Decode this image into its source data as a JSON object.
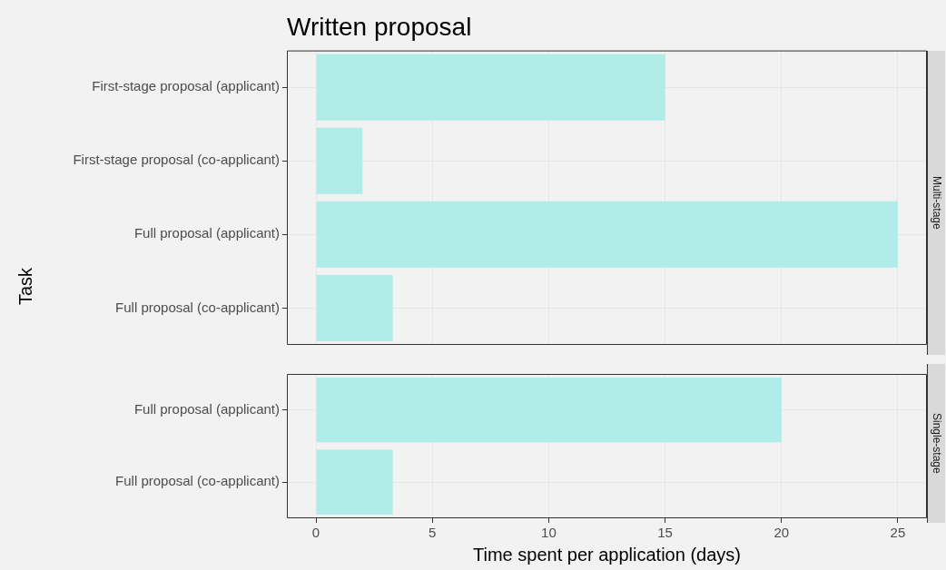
{
  "chart_data": [
    {
      "type": "bar",
      "title": "Written proposal",
      "ylabel": "Task",
      "orientation": "horizontal",
      "categories": [
        "First-stage proposal (applicant)",
        "First-stage proposal (co-applicant)",
        "Full proposal (applicant)",
        "Full proposal (co-applicant)"
      ],
      "values": [
        15,
        2,
        25,
        3.3
      ],
      "color": "#b0ede8",
      "xlim": [
        -1.25,
        26.25
      ],
      "xticks": [
        0,
        5,
        10,
        15,
        20,
        25
      ],
      "grid": true,
      "tick_labels": "y",
      "annotations": [
        "Multi-stage"
      ]
    },
    {
      "type": "bar",
      "xlabel": "Time spent per application (days)",
      "orientation": "horizontal",
      "categories": [
        "Full proposal (applicant)",
        "Full proposal (co-applicant)"
      ],
      "values": [
        20,
        3.3
      ],
      "color": "#b0ede8",
      "xlim": [
        -1.25,
        26.25
      ],
      "xticks": [
        0,
        5,
        10,
        15,
        20,
        25
      ],
      "grid": true,
      "annotations": [
        "Single-stage"
      ]
    }
  ]
}
